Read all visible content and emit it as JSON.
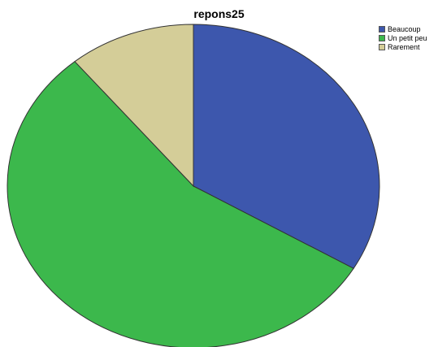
{
  "chart_data": {
    "type": "pie",
    "title": "repons25",
    "categories": [
      "Beaucoup",
      "Un petit peu",
      "Rarement"
    ],
    "values": [
      33.5,
      55.5,
      11.0
    ],
    "colors": [
      "#3d57ad",
      "#3cb84c",
      "#d4cd98"
    ],
    "legend_position": "top-right",
    "start_angle_deg": 0,
    "direction": "clockwise"
  }
}
